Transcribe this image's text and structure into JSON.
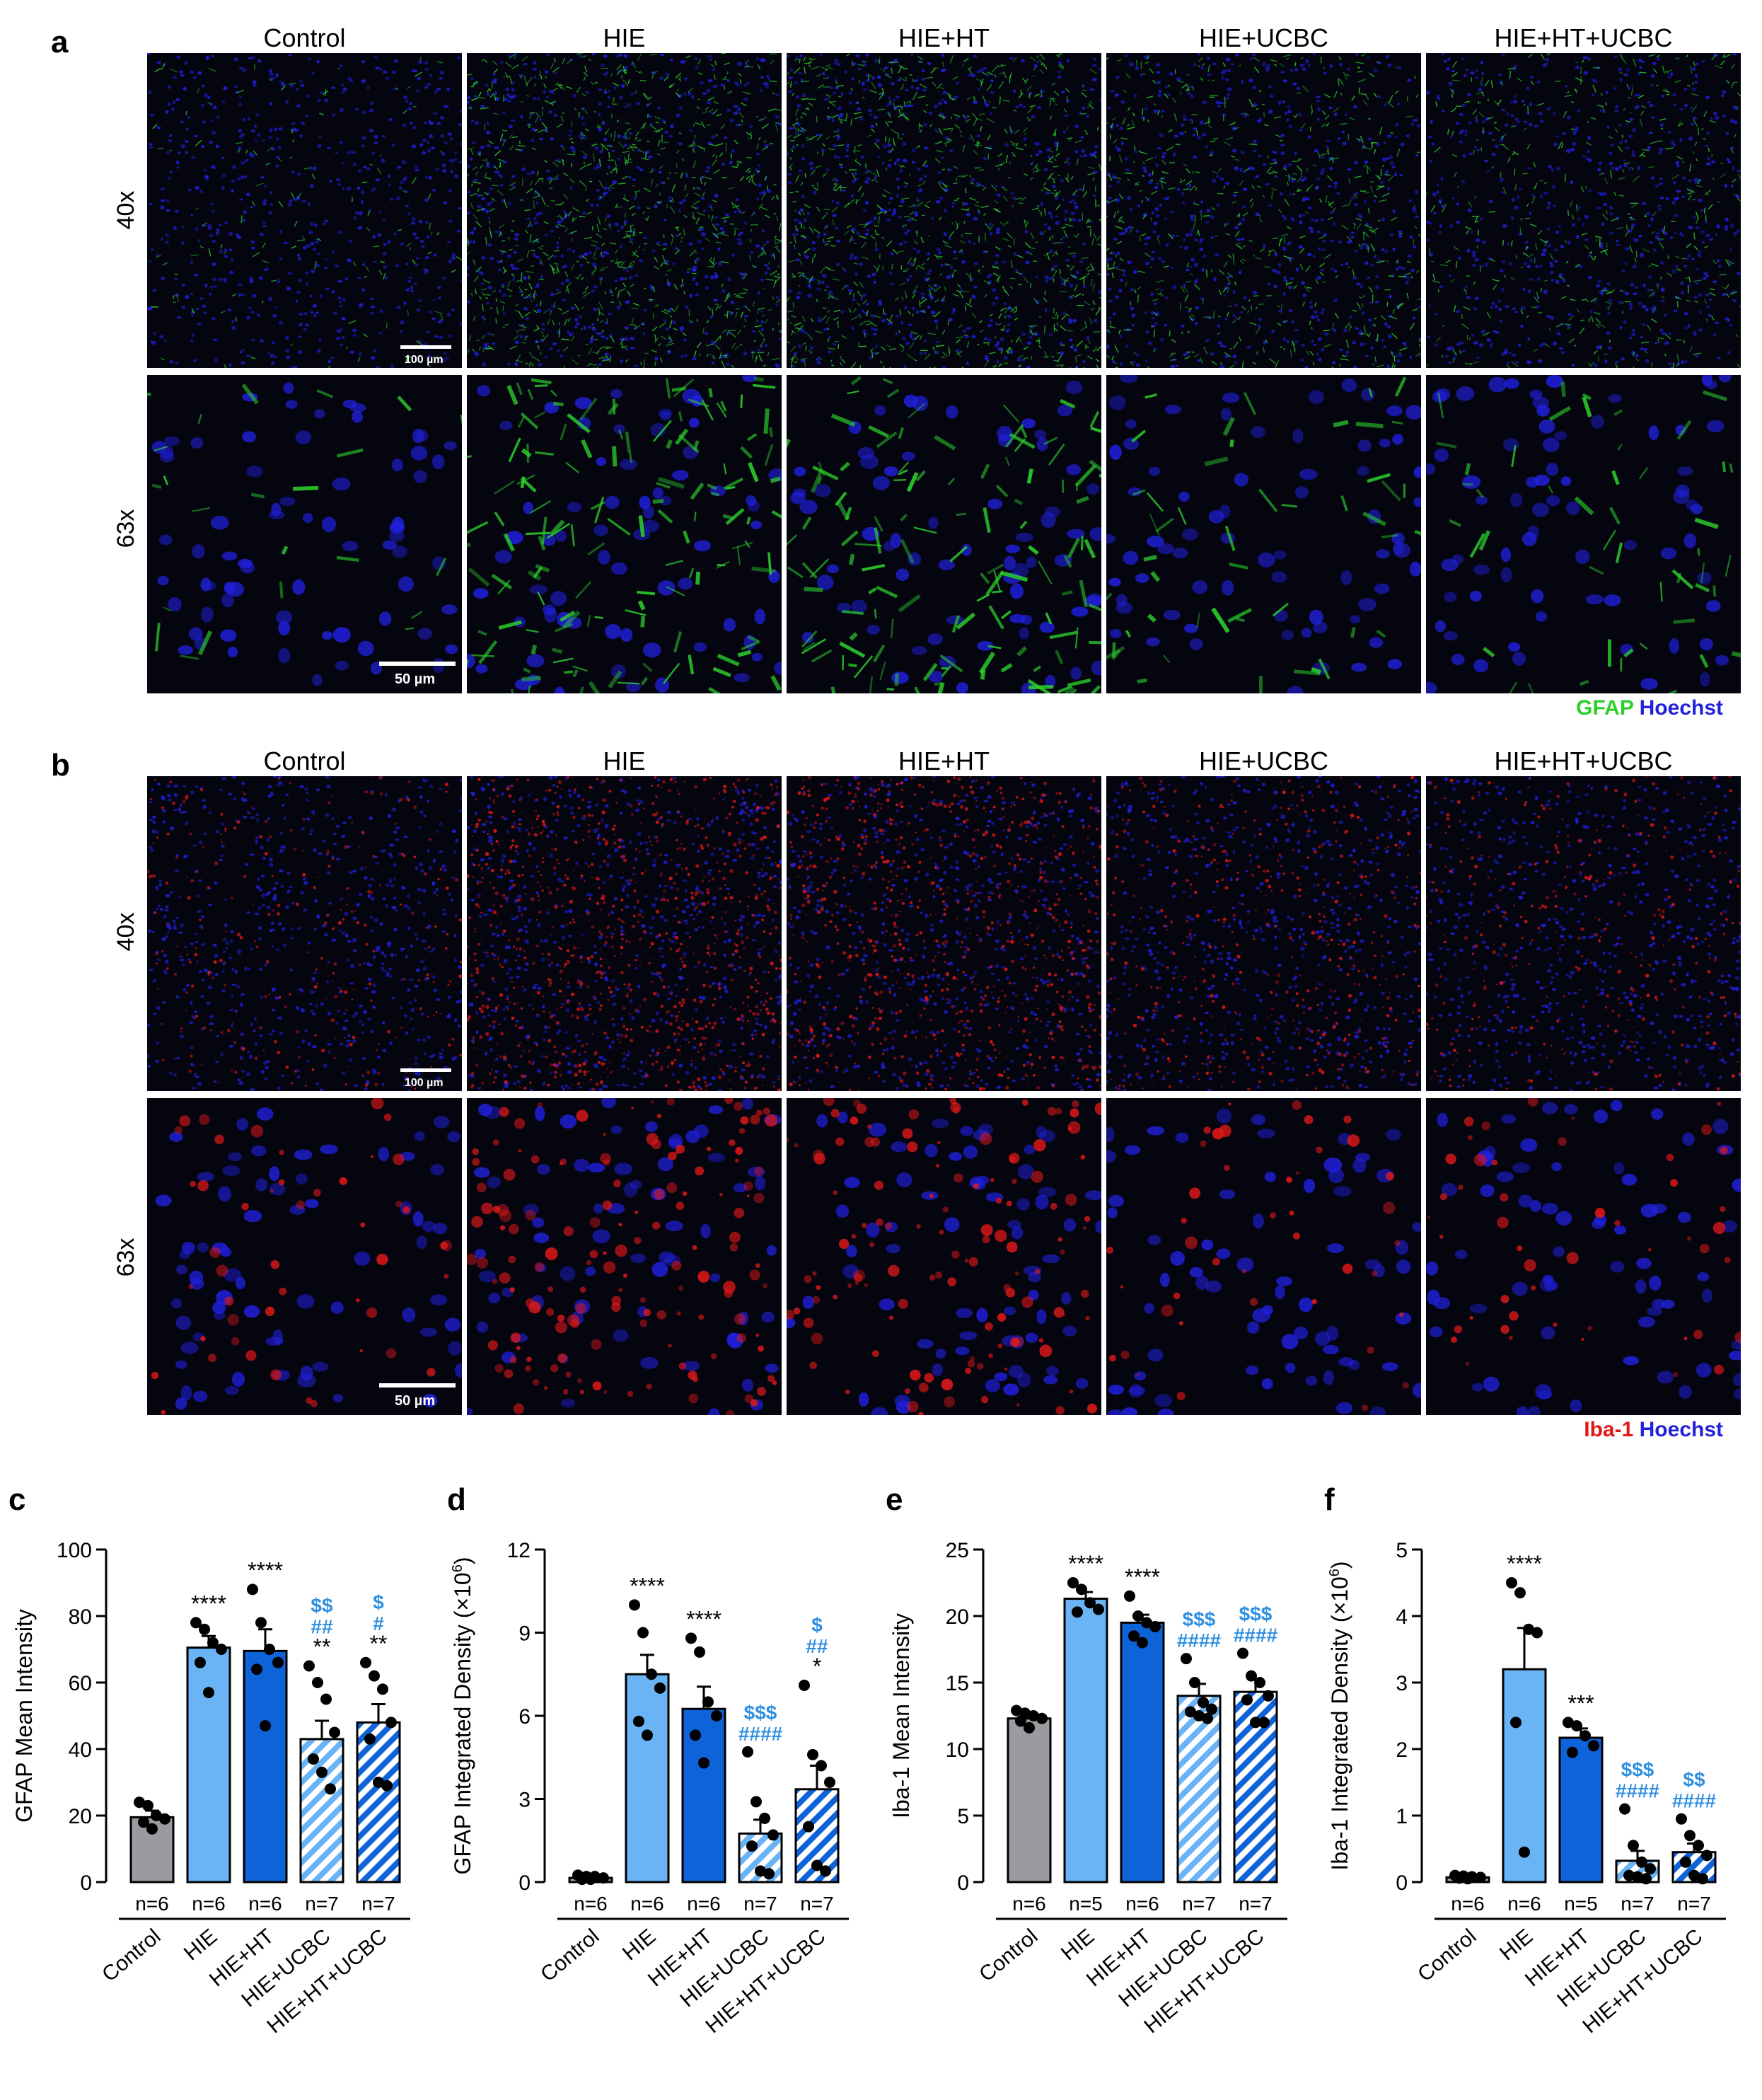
{
  "panels": {
    "a": {
      "letter": "a",
      "columns": [
        "Control",
        "HIE",
        "HIE+HT",
        "HIE+UCBC",
        "HIE+HT+UCBC"
      ],
      "rows": [
        "40x",
        "63x"
      ],
      "scale_labels": [
        "100 µm",
        "50 µm"
      ],
      "legend": {
        "marker": "GFAP",
        "counterstain": "Hoechst"
      },
      "colors": {
        "marker": "#2bd02b",
        "counterstain": "#2020e0"
      }
    },
    "b": {
      "letter": "b",
      "columns": [
        "Control",
        "HIE",
        "HIE+HT",
        "HIE+UCBC",
        "HIE+HT+UCBC"
      ],
      "rows": [
        "40x",
        "63x"
      ],
      "scale_labels": [
        "100 µm",
        "50 µm"
      ],
      "legend": {
        "marker": "Iba-1",
        "counterstain": "Hoechst"
      },
      "colors": {
        "marker": "#e01818",
        "counterstain": "#2020e0"
      }
    }
  },
  "chart_data": [
    {
      "id": "c",
      "letter": "c",
      "type": "bar",
      "ylabel": "GFAP Mean Intensity",
      "ylim": [
        0,
        100
      ],
      "yticks": [
        "0",
        "20",
        "40",
        "60",
        "80",
        "100"
      ],
      "ytick_values": [
        0,
        20,
        40,
        60,
        80,
        100
      ],
      "categories": [
        "Control",
        "HIE",
        "HIE+HT",
        "HIE+UCBC",
        "HIE+HT+UCBC"
      ],
      "values": [
        19.5,
        70.5,
        69.5,
        43,
        48
      ],
      "sem": [
        2,
        3.5,
        6.5,
        5.5,
        5.5
      ],
      "points": [
        [
          24,
          23,
          20,
          19,
          18,
          16
        ],
        [
          78,
          76,
          72,
          70,
          66,
          57
        ],
        [
          88,
          78,
          70,
          66,
          64,
          47
        ],
        [
          65,
          60,
          55,
          45,
          37,
          33,
          28
        ],
        [
          66,
          62,
          58,
          48,
          43,
          30,
          29
        ]
      ],
      "n_labels": [
        "n=6",
        "n=6",
        "n=6",
        "n=7",
        "n=7"
      ],
      "annotations": [
        [
          "",
          "",
          ""
        ],
        [
          "****",
          "",
          ""
        ],
        [
          "****",
          "",
          ""
        ],
        [
          "**",
          "##",
          "$$"
        ],
        [
          "**",
          "#",
          "$"
        ]
      ]
    },
    {
      "id": "d",
      "letter": "d",
      "type": "bar",
      "ylabel": "GFAP Integrated Density (×10",
      "ylabel_sup": "6",
      "ylabel_end": ")",
      "ylim": [
        0,
        12
      ],
      "yticks": [
        "0",
        "3",
        "6",
        "9",
        "12"
      ],
      "ytick_values": [
        0,
        3,
        6,
        9,
        12
      ],
      "categories": [
        "Control",
        "HIE",
        "HIE+HT",
        "HIE+UCBC",
        "HIE+HT+UCBC"
      ],
      "values": [
        0.15,
        7.5,
        6.25,
        1.75,
        3.35
      ],
      "sem": [
        0.05,
        0.7,
        0.8,
        0.5,
        0.85
      ],
      "points": [
        [
          0.25,
          0.2,
          0.2,
          0.15,
          0.1,
          0.1
        ],
        [
          10,
          9,
          7.5,
          7,
          5.8,
          5.3
        ],
        [
          8.8,
          8.3,
          6.5,
          6,
          5.3,
          4.3
        ],
        [
          4.7,
          2.9,
          2.3,
          1.7,
          1.3,
          0.4,
          0.3
        ],
        [
          7.1,
          4.6,
          4.2,
          3.6,
          2,
          0.6,
          0.4
        ]
      ],
      "n_labels": [
        "n=6",
        "n=6",
        "n=6",
        "n=7",
        "n=7"
      ],
      "annotations": [
        [
          "",
          "",
          ""
        ],
        [
          "****",
          "",
          ""
        ],
        [
          "****",
          "",
          ""
        ],
        [
          "",
          "####",
          "$$$"
        ],
        [
          "*",
          "##",
          "$"
        ]
      ]
    },
    {
      "id": "e",
      "letter": "e",
      "type": "bar",
      "ylabel": "Iba-1 Mean Intensity",
      "ylim": [
        0,
        25
      ],
      "yticks": [
        "0",
        "5",
        "10",
        "15",
        "20",
        "25"
      ],
      "ytick_values": [
        0,
        5,
        10,
        15,
        20,
        25
      ],
      "categories": [
        "Control",
        "HIE",
        "HIE+HT",
        "HIE+UCBC",
        "HIE+HT+UCBC"
      ],
      "values": [
        12.3,
        21.3,
        19.5,
        14,
        14.3
      ],
      "sem": [
        0.3,
        0.5,
        0.6,
        0.9,
        0.9
      ],
      "points": [
        [
          12.9,
          12.7,
          12.5,
          12.3,
          12.1,
          11.6
        ],
        [
          22.5,
          22,
          21,
          20.5,
          20.3
        ],
        [
          21.5,
          20,
          19.5,
          19.2,
          18.5,
          18
        ],
        [
          16.8,
          15,
          13.5,
          13,
          12.8,
          12.5,
          12.3
        ],
        [
          17.2,
          15.5,
          15,
          14,
          13.7,
          12,
          12
        ]
      ],
      "n_labels": [
        "n=6",
        "n=5",
        "n=6",
        "n=7",
        "n=7"
      ],
      "annotations": [
        [
          "",
          "",
          ""
        ],
        [
          "****",
          "",
          ""
        ],
        [
          "****",
          "",
          ""
        ],
        [
          "",
          "####",
          "$$$"
        ],
        [
          "",
          "####",
          "$$$"
        ]
      ]
    },
    {
      "id": "f",
      "letter": "f",
      "type": "bar",
      "ylabel": "Iba-1 Integrated Density (×10",
      "ylabel_sup": "6",
      "ylabel_end": ")",
      "ylim": [
        0,
        5
      ],
      "yticks": [
        "0",
        "1",
        "2",
        "3",
        "4",
        "5"
      ],
      "ytick_values": [
        0,
        1,
        2,
        3,
        4,
        5
      ],
      "categories": [
        "Control",
        "HIE",
        "HIE+HT",
        "HIE+UCBC",
        "HIE+HT+UCBC"
      ],
      "values": [
        0.07,
        3.2,
        2.17,
        0.32,
        0.45
      ],
      "sem": [
        0.02,
        0.62,
        0.14,
        0.15,
        0.13
      ],
      "points": [
        [
          0.1,
          0.09,
          0.08,
          0.07,
          0.06,
          0.05
        ],
        [
          4.5,
          4.35,
          3.8,
          3.75,
          2.4,
          0.45
        ],
        [
          2.4,
          2.35,
          2.2,
          2.05,
          1.95
        ],
        [
          1.1,
          0.55,
          0.3,
          0.2,
          0.1,
          0.08,
          0.05
        ],
        [
          0.95,
          0.7,
          0.55,
          0.4,
          0.3,
          0.1,
          0.05
        ]
      ],
      "n_labels": [
        "n=6",
        "n=6",
        "n=5",
        "n=7",
        "n=7"
      ],
      "annotations": [
        [
          "",
          "",
          ""
        ],
        [
          "****",
          "",
          ""
        ],
        [
          "***",
          "",
          ""
        ],
        [
          "",
          "####",
          "$$$"
        ],
        [
          "",
          "####",
          "$$"
        ]
      ]
    }
  ]
}
